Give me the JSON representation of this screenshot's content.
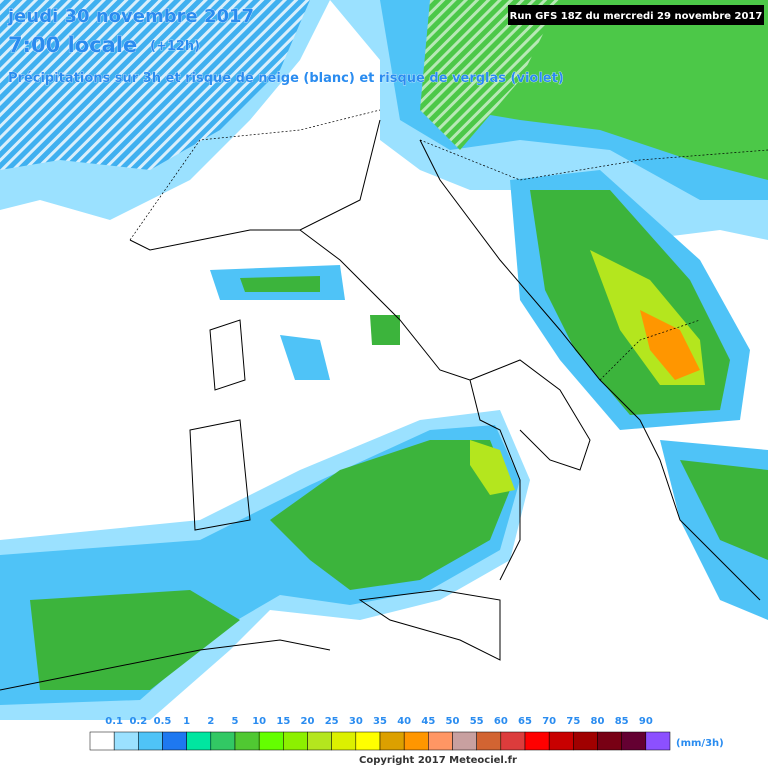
{
  "header": {
    "date": "jeudi 30 novembre 2017",
    "time": "7:00 locale",
    "offset": "(+12h)",
    "subtitle": "Précipitations sur 3h et risque de neige (blanc) et risque de verglas (violet)",
    "run": "Run GFS 18Z du mercredi 29 novembre 2017"
  },
  "legend": {
    "labels": [
      "0.1",
      "0.2",
      "0.5",
      "1",
      "2",
      "5",
      "10",
      "15",
      "20",
      "25",
      "30",
      "35",
      "40",
      "45",
      "50",
      "55",
      "60",
      "65",
      "70",
      "75",
      "80",
      "85",
      "90"
    ],
    "unit": "(mm/3h)"
  },
  "footer": {
    "copyright": "Copyright 2017 Meteociel.fr"
  }
}
